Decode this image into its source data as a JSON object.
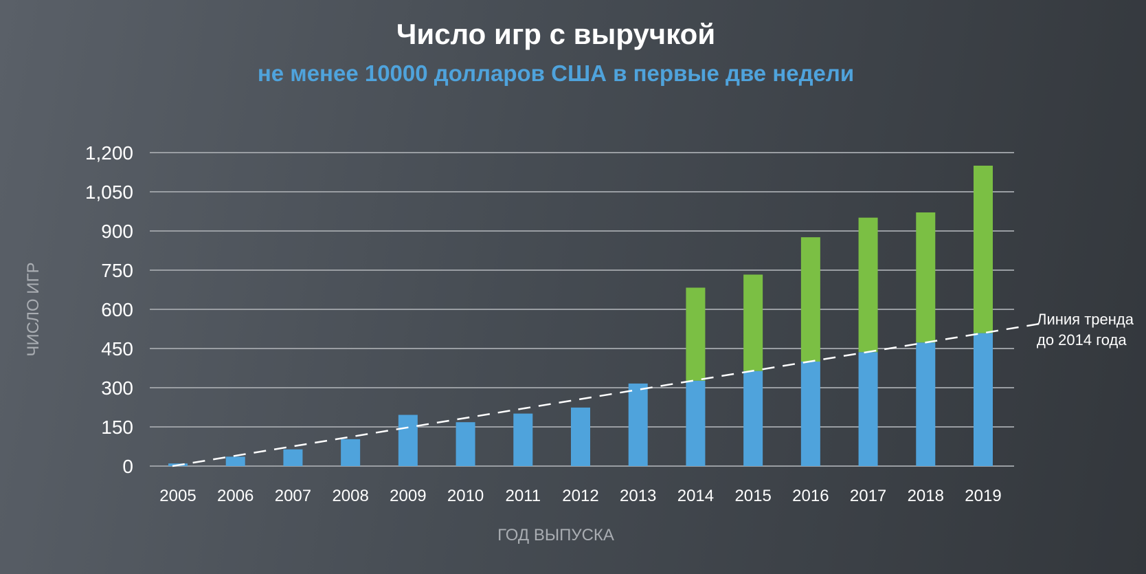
{
  "chart_data": {
    "type": "bar",
    "stacked": true,
    "title": "Число игр с выручкой",
    "subtitle": "не менее 10000 долларов США в первые две недели",
    "xlabel": "ГОД ВЫПУСКА",
    "ylabel": "ЧИСЛО ИГР",
    "ylim": [
      0,
      1200
    ],
    "yticks": [
      0,
      150,
      300,
      450,
      600,
      750,
      900,
      1050,
      1200
    ],
    "ytick_labels": [
      "0",
      "150",
      "300",
      "450",
      "600",
      "750",
      "900",
      "1,050",
      "1,200"
    ],
    "grid": true,
    "categories": [
      "2005",
      "2006",
      "2007",
      "2008",
      "2009",
      "2010",
      "2011",
      "2012",
      "2013",
      "2014",
      "2015",
      "2016",
      "2017",
      "2018",
      "2019"
    ],
    "series": [
      {
        "color": "#4fa3dc",
        "values": [
          10,
          36,
          64,
          103,
          196,
          168,
          201,
          224,
          316,
          327,
          364,
          400,
          436,
          473,
          509
        ]
      },
      {
        "color": "#7bbf44",
        "values": [
          0,
          0,
          0,
          0,
          0,
          0,
          0,
          0,
          0,
          356,
          369,
          476,
          515,
          498,
          641
        ]
      }
    ],
    "trend_line": {
      "label_lines": [
        "Линия тренда",
        "до 2014 года"
      ],
      "color": "#ffffff",
      "style": "dashed",
      "from": {
        "x": "2005",
        "y": 0
      },
      "to": {
        "x": "2019",
        "y": 509
      }
    }
  }
}
